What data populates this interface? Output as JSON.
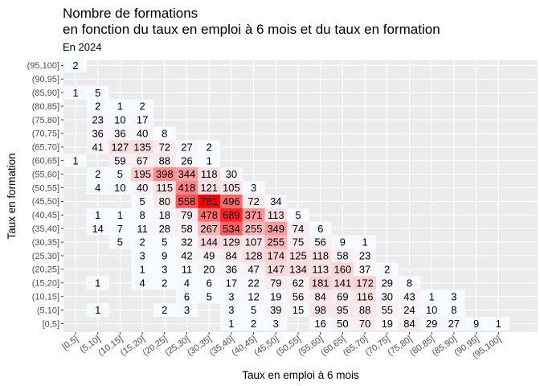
{
  "chart_data": {
    "type": "heatmap",
    "title_line1": "Nombre de formations",
    "title_line2": "en fonction du taux en emploi à 6 mois et du taux en formation",
    "subtitle": "En 2024",
    "xlabel": "Taux en emploi à 6 mois",
    "ylabel": "Taux en formation",
    "x_categories": [
      "[0,5]",
      "(5,10]",
      "(10,15]",
      "(15,20]",
      "(20,25]",
      "(25,30]",
      "(30,35]",
      "(35,40]",
      "(40,45]",
      "(45,50]",
      "(50,55]",
      "(55,60]",
      "(60,65]",
      "(65,70]",
      "(70,75]",
      "(75,80]",
      "(80,85]",
      "(85,90]",
      "(90,95]",
      "(95,100]"
    ],
    "y_categories": [
      "[0,5]",
      "(5,10]",
      "(10,15]",
      "(15,20]",
      "(20,25]",
      "(25,30]",
      "(30,35]",
      "(35,40]",
      "(40,45]",
      "(45,50]",
      "(50,55]",
      "(55,60]",
      "(60,65]",
      "(65,70]",
      "(70,75]",
      "(75,80]",
      "(80,85]",
      "(85,90]",
      "(90,95]",
      "(95,100]"
    ],
    "color_low": "#f7fbff",
    "color_high": "#ff0000",
    "grid": true,
    "cells": [
      {
        "x": "[0,5]",
        "y": "(95,100]",
        "value": 2
      },
      {
        "x": "[0,5]",
        "y": "(85,90]",
        "value": 1
      },
      {
        "x": "[0,5]",
        "y": "(60,65]",
        "value": 1
      },
      {
        "x": "(5,10]",
        "y": "(85,90]",
        "value": 5
      },
      {
        "x": "(5,10]",
        "y": "(80,85]",
        "value": 2
      },
      {
        "x": "(5,10]",
        "y": "(75,80]",
        "value": 23
      },
      {
        "x": "(5,10]",
        "y": "(70,75]",
        "value": 36
      },
      {
        "x": "(5,10]",
        "y": "(65,70]",
        "value": 41
      },
      {
        "x": "(5,10]",
        "y": "(55,60]",
        "value": 2
      },
      {
        "x": "(5,10]",
        "y": "(50,55]",
        "value": 4
      },
      {
        "x": "(5,10]",
        "y": "(40,45]",
        "value": 1
      },
      {
        "x": "(5,10]",
        "y": "(35,40]",
        "value": 14
      },
      {
        "x": "(5,10]",
        "y": "(15,20]",
        "value": 1
      },
      {
        "x": "(5,10]",
        "y": "(5,10]",
        "value": 1
      },
      {
        "x": "(10,15]",
        "y": "(80,85]",
        "value": 1
      },
      {
        "x": "(10,15]",
        "y": "(75,80]",
        "value": 10
      },
      {
        "x": "(10,15]",
        "y": "(70,75]",
        "value": 36
      },
      {
        "x": "(10,15]",
        "y": "(65,70]",
        "value": 127
      },
      {
        "x": "(10,15]",
        "y": "(60,65]",
        "value": 59
      },
      {
        "x": "(10,15]",
        "y": "(55,60]",
        "value": 5
      },
      {
        "x": "(10,15]",
        "y": "(50,55]",
        "value": 10
      },
      {
        "x": "(10,15]",
        "y": "(40,45]",
        "value": 1
      },
      {
        "x": "(10,15]",
        "y": "(35,40]",
        "value": 7
      },
      {
        "x": "(10,15]",
        "y": "(30,35]",
        "value": 5
      },
      {
        "x": "(15,20]",
        "y": "(80,85]",
        "value": 2
      },
      {
        "x": "(15,20]",
        "y": "(75,80]",
        "value": 17
      },
      {
        "x": "(15,20]",
        "y": "(70,75]",
        "value": 40
      },
      {
        "x": "(15,20]",
        "y": "(65,70]",
        "value": 135
      },
      {
        "x": "(15,20]",
        "y": "(60,65]",
        "value": 67
      },
      {
        "x": "(15,20]",
        "y": "(55,60]",
        "value": 195
      },
      {
        "x": "(15,20]",
        "y": "(50,55]",
        "value": 40
      },
      {
        "x": "(15,20]",
        "y": "(45,50]",
        "value": 5
      },
      {
        "x": "(15,20]",
        "y": "(40,45]",
        "value": 8
      },
      {
        "x": "(15,20]",
        "y": "(35,40]",
        "value": 11
      },
      {
        "x": "(15,20]",
        "y": "(30,35]",
        "value": 2
      },
      {
        "x": "(15,20]",
        "y": "(25,30]",
        "value": 3
      },
      {
        "x": "(15,20]",
        "y": "(20,25]",
        "value": 1
      },
      {
        "x": "(15,20]",
        "y": "(15,20]",
        "value": 4
      },
      {
        "x": "(20,25]",
        "y": "(70,75]",
        "value": 8
      },
      {
        "x": "(20,25]",
        "y": "(65,70]",
        "value": 72
      },
      {
        "x": "(20,25]",
        "y": "(60,65]",
        "value": 88
      },
      {
        "x": "(20,25]",
        "y": "(55,60]",
        "value": 398
      },
      {
        "x": "(20,25]",
        "y": "(50,55]",
        "value": 115
      },
      {
        "x": "(20,25]",
        "y": "(45,50]",
        "value": 80
      },
      {
        "x": "(20,25]",
        "y": "(40,45]",
        "value": 18
      },
      {
        "x": "(20,25]",
        "y": "(35,40]",
        "value": 28
      },
      {
        "x": "(20,25]",
        "y": "(30,35]",
        "value": 5
      },
      {
        "x": "(20,25]",
        "y": "(25,30]",
        "value": 9
      },
      {
        "x": "(20,25]",
        "y": "(20,25]",
        "value": 3
      },
      {
        "x": "(20,25]",
        "y": "(15,20]",
        "value": 2
      },
      {
        "x": "(20,25]",
        "y": "(5,10]",
        "value": 2
      },
      {
        "x": "(25,30]",
        "y": "(65,70]",
        "value": 27
      },
      {
        "x": "(25,30]",
        "y": "(60,65]",
        "value": 26
      },
      {
        "x": "(25,30]",
        "y": "(55,60]",
        "value": 344
      },
      {
        "x": "(25,30]",
        "y": "(50,55]",
        "value": 418
      },
      {
        "x": "(25,30]",
        "y": "(45,50]",
        "value": 558
      },
      {
        "x": "(25,30]",
        "y": "(40,45]",
        "value": 79
      },
      {
        "x": "(25,30]",
        "y": "(35,40]",
        "value": 58
      },
      {
        "x": "(25,30]",
        "y": "(30,35]",
        "value": 32
      },
      {
        "x": "(25,30]",
        "y": "(25,30]",
        "value": 42
      },
      {
        "x": "(25,30]",
        "y": "(20,25]",
        "value": 11
      },
      {
        "x": "(25,30]",
        "y": "(15,20]",
        "value": 4
      },
      {
        "x": "(25,30]",
        "y": "(10,15]",
        "value": 6
      },
      {
        "x": "(25,30]",
        "y": "(5,10]",
        "value": 3
      },
      {
        "x": "(30,35]",
        "y": "(65,70]",
        "value": 2
      },
      {
        "x": "(30,35]",
        "y": "(60,65]",
        "value": 1
      },
      {
        "x": "(30,35]",
        "y": "(55,60]",
        "value": 118
      },
      {
        "x": "(30,35]",
        "y": "(50,55]",
        "value": 121
      },
      {
        "x": "(30,35]",
        "y": "(45,50]",
        "value": 781
      },
      {
        "x": "(30,35]",
        "y": "(40,45]",
        "value": 478
      },
      {
        "x": "(30,35]",
        "y": "(35,40]",
        "value": 267
      },
      {
        "x": "(30,35]",
        "y": "(30,35]",
        "value": 144
      },
      {
        "x": "(30,35]",
        "y": "(25,30]",
        "value": 49
      },
      {
        "x": "(30,35]",
        "y": "(20,25]",
        "value": 20
      },
      {
        "x": "(30,35]",
        "y": "(15,20]",
        "value": 6
      },
      {
        "x": "(30,35]",
        "y": "(10,15]",
        "value": 5
      },
      {
        "x": "(35,40]",
        "y": "(55,60]",
        "value": 30
      },
      {
        "x": "(35,40]",
        "y": "(50,55]",
        "value": 105
      },
      {
        "x": "(35,40]",
        "y": "(45,50]",
        "value": 496
      },
      {
        "x": "(35,40]",
        "y": "(40,45]",
        "value": 689
      },
      {
        "x": "(35,40]",
        "y": "(35,40]",
        "value": 534
      },
      {
        "x": "(35,40]",
        "y": "(30,35]",
        "value": 129
      },
      {
        "x": "(35,40]",
        "y": "(25,30]",
        "value": 84
      },
      {
        "x": "(35,40]",
        "y": "(20,25]",
        "value": 36
      },
      {
        "x": "(35,40]",
        "y": "(15,20]",
        "value": 17
      },
      {
        "x": "(35,40]",
        "y": "(10,15]",
        "value": 3
      },
      {
        "x": "(35,40]",
        "y": "(5,10]",
        "value": 3
      },
      {
        "x": "(35,40]",
        "y": "[0,5]",
        "value": 1
      },
      {
        "x": "(40,45]",
        "y": "(50,55]",
        "value": 3
      },
      {
        "x": "(40,45]",
        "y": "(45,50]",
        "value": 72
      },
      {
        "x": "(40,45]",
        "y": "(40,45]",
        "value": 371
      },
      {
        "x": "(40,45]",
        "y": "(35,40]",
        "value": 255
      },
      {
        "x": "(40,45]",
        "y": "(30,35]",
        "value": 107
      },
      {
        "x": "(40,45]",
        "y": "(25,30]",
        "value": 128
      },
      {
        "x": "(40,45]",
        "y": "(20,25]",
        "value": 47
      },
      {
        "x": "(40,45]",
        "y": "(15,20]",
        "value": 22
      },
      {
        "x": "(40,45]",
        "y": "(10,15]",
        "value": 12
      },
      {
        "x": "(40,45]",
        "y": "(5,10]",
        "value": 5
      },
      {
        "x": "(40,45]",
        "y": "[0,5]",
        "value": 2
      },
      {
        "x": "(45,50]",
        "y": "(45,50]",
        "value": 34
      },
      {
        "x": "(45,50]",
        "y": "(40,45]",
        "value": 113
      },
      {
        "x": "(45,50]",
        "y": "(35,40]",
        "value": 349
      },
      {
        "x": "(45,50]",
        "y": "(30,35]",
        "value": 255
      },
      {
        "x": "(45,50]",
        "y": "(25,30]",
        "value": 174
      },
      {
        "x": "(45,50]",
        "y": "(20,25]",
        "value": 147
      },
      {
        "x": "(45,50]",
        "y": "(15,20]",
        "value": 79
      },
      {
        "x": "(45,50]",
        "y": "(10,15]",
        "value": 19
      },
      {
        "x": "(45,50]",
        "y": "(5,10]",
        "value": 39
      },
      {
        "x": "(45,50]",
        "y": "[0,5]",
        "value": 3
      },
      {
        "x": "(50,55]",
        "y": "(40,45]",
        "value": 5
      },
      {
        "x": "(50,55]",
        "y": "(35,40]",
        "value": 74
      },
      {
        "x": "(50,55]",
        "y": "(30,35]",
        "value": 75
      },
      {
        "x": "(50,55]",
        "y": "(25,30]",
        "value": 125
      },
      {
        "x": "(50,55]",
        "y": "(20,25]",
        "value": 134
      },
      {
        "x": "(50,55]",
        "y": "(15,20]",
        "value": 62
      },
      {
        "x": "(50,55]",
        "y": "(10,15]",
        "value": 56
      },
      {
        "x": "(50,55]",
        "y": "(5,10]",
        "value": 15
      },
      {
        "x": "(55,60]",
        "y": "(35,40]",
        "value": 6
      },
      {
        "x": "(55,60]",
        "y": "(30,35]",
        "value": 56
      },
      {
        "x": "(55,60]",
        "y": "(25,30]",
        "value": 118
      },
      {
        "x": "(55,60]",
        "y": "(20,25]",
        "value": 113
      },
      {
        "x": "(55,60]",
        "y": "(15,20]",
        "value": 181
      },
      {
        "x": "(55,60]",
        "y": "(10,15]",
        "value": 84
      },
      {
        "x": "(55,60]",
        "y": "(5,10]",
        "value": 98
      },
      {
        "x": "(55,60]",
        "y": "[0,5]",
        "value": 16
      },
      {
        "x": "(60,65]",
        "y": "(30,35]",
        "value": 9
      },
      {
        "x": "(60,65]",
        "y": "(25,30]",
        "value": 58
      },
      {
        "x": "(60,65]",
        "y": "(20,25]",
        "value": 160
      },
      {
        "x": "(60,65]",
        "y": "(15,20]",
        "value": 141
      },
      {
        "x": "(60,65]",
        "y": "(10,15]",
        "value": 69
      },
      {
        "x": "(60,65]",
        "y": "(5,10]",
        "value": 95
      },
      {
        "x": "(60,65]",
        "y": "[0,5]",
        "value": 50
      },
      {
        "x": "(65,70]",
        "y": "(30,35]",
        "value": 1
      },
      {
        "x": "(65,70]",
        "y": "(25,30]",
        "value": 23
      },
      {
        "x": "(65,70]",
        "y": "(20,25]",
        "value": 37
      },
      {
        "x": "(65,70]",
        "y": "(15,20]",
        "value": 172
      },
      {
        "x": "(65,70]",
        "y": "(10,15]",
        "value": 116
      },
      {
        "x": "(65,70]",
        "y": "(5,10]",
        "value": 88
      },
      {
        "x": "(65,70]",
        "y": "[0,5]",
        "value": 70
      },
      {
        "x": "(70,75]",
        "y": "(20,25]",
        "value": 2
      },
      {
        "x": "(70,75]",
        "y": "(15,20]",
        "value": 29
      },
      {
        "x": "(70,75]",
        "y": "(10,15]",
        "value": 30
      },
      {
        "x": "(70,75]",
        "y": "(5,10]",
        "value": 55
      },
      {
        "x": "(70,75]",
        "y": "[0,5]",
        "value": 19
      },
      {
        "x": "(75,80]",
        "y": "(15,20]",
        "value": 8
      },
      {
        "x": "(75,80]",
        "y": "(10,15]",
        "value": 43
      },
      {
        "x": "(75,80]",
        "y": "(5,10]",
        "value": 24
      },
      {
        "x": "(75,80]",
        "y": "[0,5]",
        "value": 84
      },
      {
        "x": "(80,85]",
        "y": "(10,15]",
        "value": 1
      },
      {
        "x": "(80,85]",
        "y": "(5,10]",
        "value": 10
      },
      {
        "x": "(80,85]",
        "y": "[0,5]",
        "value": 29
      },
      {
        "x": "(85,90]",
        "y": "(10,15]",
        "value": 3
      },
      {
        "x": "(85,90]",
        "y": "(5,10]",
        "value": 8
      },
      {
        "x": "(85,90]",
        "y": "[0,5]",
        "value": 27
      },
      {
        "x": "(90,95]",
        "y": "[0,5]",
        "value": 9
      },
      {
        "x": "(95,100]",
        "y": "[0,5]",
        "value": 1
      }
    ]
  }
}
